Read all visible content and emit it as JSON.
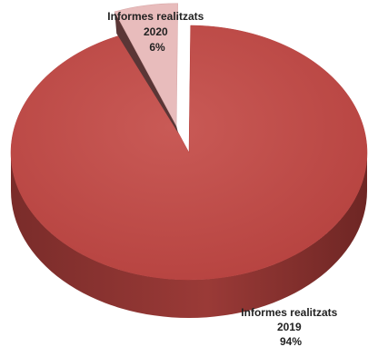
{
  "chart_data": {
    "type": "pie",
    "title": "",
    "slices": [
      {
        "label_lines": [
          "Informes realitzats",
          "2020",
          "6%"
        ],
        "value": 6,
        "color": "#e8bcbc",
        "exploded": true
      },
      {
        "label_lines": [
          "Informes realitzats",
          "2019",
          "94%"
        ],
        "value": 94,
        "color": "#c0504d",
        "exploded": false
      }
    ],
    "legend": "none"
  }
}
